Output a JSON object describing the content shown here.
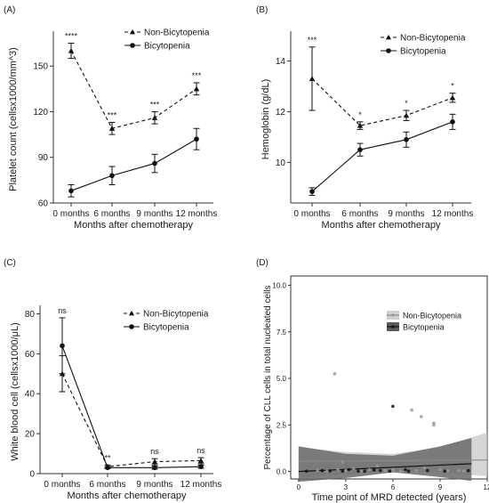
{
  "chart_data": [
    {
      "type": "line",
      "panel_label": "(A)",
      "categories": [
        "0 months",
        "6 months",
        "9 months",
        "12 months"
      ],
      "xlabel": "Months after chemotherapy",
      "ylabel": "Platelet count (cellsx1000/mm^3)",
      "ylim": [
        60,
        170
      ],
      "yticks": [
        60,
        90,
        120,
        150
      ],
      "legend_position": "top-right",
      "significance": [
        "****",
        "***",
        "***",
        "***"
      ],
      "series": [
        {
          "name": "Non-Bicytopenia",
          "marker": "triangle",
          "dash": true,
          "values": [
            160,
            109,
            116,
            135
          ],
          "err": [
            5,
            4,
            4,
            4
          ]
        },
        {
          "name": "Bicytopenia",
          "marker": "circle",
          "dash": false,
          "values": [
            68,
            78,
            86,
            102
          ],
          "err": [
            4,
            6,
            6,
            7
          ]
        }
      ]
    },
    {
      "type": "line",
      "panel_label": "(B)",
      "categories": [
        "0 months",
        "6 months",
        "9 months",
        "12 months"
      ],
      "xlabel": "Months after chemotherapy",
      "ylabel": "Hemoglobin (g/dL)",
      "ylim": [
        8.4,
        15
      ],
      "yticks": [
        10,
        12,
        14
      ],
      "legend_position": "top-right",
      "significance": [
        "***",
        "*",
        "*",
        "*"
      ],
      "series": [
        {
          "name": "Non-Bicytopenia",
          "marker": "triangle",
          "dash": true,
          "values": [
            13.3,
            11.45,
            11.85,
            12.55
          ],
          "err": [
            1.25,
            0.15,
            0.2,
            0.18
          ]
        },
        {
          "name": "Bicytopenia",
          "marker": "circle",
          "dash": false,
          "values": [
            8.85,
            10.5,
            10.9,
            11.6
          ],
          "err": [
            0.15,
            0.25,
            0.3,
            0.3
          ]
        }
      ]
    },
    {
      "type": "line",
      "panel_label": "(C)",
      "categories": [
        "0 months",
        "6 months",
        "9 months",
        "12 months"
      ],
      "xlabel": "Months after chemotherapy",
      "ylabel": "White blood cell (cellsx1000/μL)",
      "ylim": [
        0,
        82
      ],
      "yticks": [
        0,
        20,
        40,
        60,
        80
      ],
      "legend_position": "top-right",
      "significance": [
        "ns",
        "**",
        "ns",
        "ns"
      ],
      "series": [
        {
          "name": "Non-Bicytopenia",
          "marker": "triangle",
          "dash": true,
          "values": [
            50,
            3.5,
            6,
            6.5
          ],
          "err": [
            9,
            0.8,
            1.5,
            1.5
          ]
        },
        {
          "name": "Bicytopenia",
          "marker": "circle",
          "dash": false,
          "values": [
            64,
            3,
            3,
            3.5
          ],
          "err": [
            14,
            0.5,
            0.8,
            0.8
          ]
        }
      ]
    },
    {
      "type": "scatter",
      "panel_label": "(D)",
      "xlabel": "Time point of MRD detected (years)",
      "ylabel": "Percentage of CLL cells in total nucleated cells",
      "xlim": [
        -0.5,
        12
      ],
      "ylim": [
        -0.4,
        10.5
      ],
      "xticks": [
        0,
        3,
        6,
        9,
        12
      ],
      "yticks": [
        0.0,
        2.5,
        5.0,
        7.5,
        10.0
      ],
      "ytick_labels": [
        "0.0",
        "2.5",
        "5.0",
        "7.5",
        "10.0"
      ],
      "legend_position": "top-right",
      "series": [
        {
          "name": "Non-Bicytopenia",
          "color": "#9a9a9a",
          "fit": [
            [
              0,
              0.55
            ],
            [
              12,
              0.62
            ]
          ],
          "band": [
            [
              0,
              -0.35,
              1.3
            ],
            [
              3,
              -0.15,
              1.05
            ],
            [
              6,
              0.05,
              0.95
            ],
            [
              9,
              -0.05,
              1.3
            ],
            [
              12,
              -0.25,
              2.1
            ]
          ],
          "points": [
            [
              2.3,
              5.25
            ],
            [
              1.2,
              0.05
            ],
            [
              2.5,
              0.1
            ],
            [
              3.0,
              0.05
            ],
            [
              4.0,
              0.02
            ],
            [
              4.5,
              0.1
            ],
            [
              5.5,
              0.05
            ],
            [
              6.0,
              0.1
            ],
            [
              6.5,
              0.02
            ],
            [
              7.2,
              3.3
            ],
            [
              7.8,
              2.95
            ],
            [
              8.6,
              2.6
            ],
            [
              8.6,
              2.5
            ],
            [
              7.5,
              0.05
            ],
            [
              9.0,
              0.1
            ],
            [
              9.5,
              0.05
            ],
            [
              10.2,
              0.05
            ],
            [
              10.5,
              0.02
            ],
            [
              2.8,
              0.5
            ],
            [
              5.0,
              0.3
            ],
            [
              8.0,
              0.2
            ],
            [
              3.5,
              0.15
            ],
            [
              1.8,
              0.02
            ]
          ]
        },
        {
          "name": "Bicytopenia",
          "color": "#111111",
          "fit": [
            [
              0,
              0.0
            ],
            [
              11,
              0.42
            ]
          ],
          "band": [
            [
              0,
              -0.55,
              1.35
            ],
            [
              3,
              -0.35,
              0.95
            ],
            [
              6,
              -0.05,
              0.85
            ],
            [
              9,
              -0.3,
              1.35
            ],
            [
              11,
              -0.5,
              1.8
            ]
          ],
          "points": [
            [
              6.0,
              3.5
            ],
            [
              0.5,
              0.02
            ],
            [
              1.5,
              0.05
            ],
            [
              2.8,
              0.02
            ],
            [
              3.2,
              0.1
            ],
            [
              4.2,
              0.02
            ],
            [
              5.2,
              0.05
            ],
            [
              5.8,
              0.02
            ],
            [
              6.8,
              0.1
            ],
            [
              7.0,
              0.02
            ],
            [
              8.2,
              0.05
            ],
            [
              9.3,
              0.02
            ],
            [
              10.8,
              0.05
            ],
            [
              2.0,
              0.03
            ],
            [
              4.8,
              0.08
            ],
            [
              3.8,
              0.02
            ]
          ]
        }
      ]
    }
  ]
}
